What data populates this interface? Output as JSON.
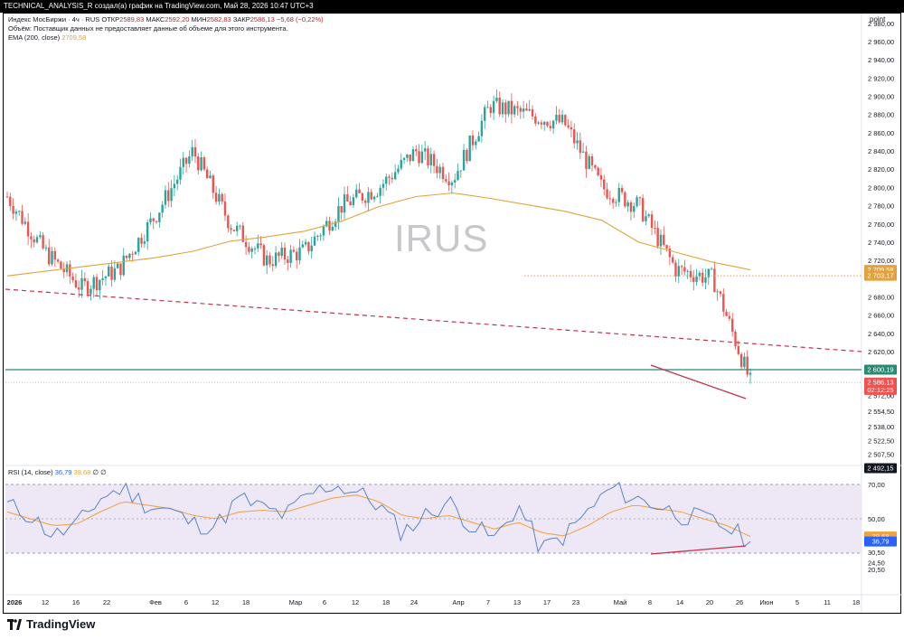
{
  "header": {
    "caption": "TECHNICAL_ANALYSIS_R создал(а) график на TradingView.com, Май 28, 2026 10:47 UTC+3"
  },
  "legend": {
    "symbol": "Индекс МосБиржи · 4ч · RUS",
    "open_label": "ОТКР",
    "open": "2589,83",
    "high_label": "МАКС",
    "high": "2592,20",
    "low_label": "МИН",
    "low": "2582,83",
    "close_label": "ЗАКР",
    "close": "2586,13",
    "change": "−5,68 (−0,22%)",
    "volume_note": "Объём: Поставщик данных не предоставляет данные об объеме для этого инструмента.",
    "ema_label": "EMA (200, close)",
    "ema_value": "2709,58",
    "rsi_label": "RSI (14, close)",
    "rsi_value": "36,79",
    "rsi_ma_value": "39,68",
    "rsi_extra": "∅ ∅"
  },
  "watermark": "IRUS",
  "axis_title": "point",
  "colors": {
    "up": "#26a69a",
    "down": "#ef5350",
    "ema": "#e3a23c",
    "rsi": "#5b84c4",
    "rsi_ma": "#f0a040",
    "trend": "#c2334d",
    "support": "#2b8a73",
    "rsi_band": "#ede7f6"
  },
  "logo": "TradingView",
  "chart_data": [
    {
      "type": "candlestick",
      "title": "Индекс МосБиржи · 4ч · RUS",
      "ylabel": "point",
      "ylim": [
        2492,
        3000
      ],
      "y_ticks": [
        "2 980,00",
        "2 960,00",
        "2 940,00",
        "2 920,00",
        "2 900,00",
        "2 880,00",
        "2 860,00",
        "2 840,00",
        "2 820,00",
        "2 800,00",
        "2 780,00",
        "2 760,00",
        "2 740,00",
        "2 720,00",
        "2 680,00",
        "2 660,00",
        "2 640,00",
        "2 620,00",
        "2 572,00",
        "2 554,50",
        "2 538,00",
        "2 522,50",
        "2 507,50"
      ],
      "x_ticks": [
        "2026",
        "12",
        "16",
        "22",
        "Фев",
        "6",
        "12",
        "18",
        "Мар",
        "6",
        "12",
        "18",
        "24",
        "Апр",
        "7",
        "13",
        "17",
        "23",
        "Май",
        "8",
        "14",
        "20",
        "26",
        "Июн",
        "5",
        "11",
        "18"
      ],
      "price_labels": [
        {
          "text": "2 709,58",
          "value": 2709.58,
          "color": "#e3a23c"
        },
        {
          "text": "2 703,17",
          "value": 2703.17,
          "color": "#e3a23c"
        },
        {
          "text": "2 600,19",
          "value": 2600.19,
          "color": "#2b8a73"
        },
        {
          "text": "2 586,13",
          "value": 2586.13,
          "color": "#ef5350"
        },
        {
          "text": "02:12:25",
          "value": 2578,
          "color": "#ef5350"
        },
        {
          "text": "2 492,15",
          "value": 2492.15,
          "color": "#131722"
        }
      ],
      "series": [
        {
          "name": "EMA (200, close)",
          "x": [
            0,
            0.05,
            0.1,
            0.15,
            0.2,
            0.25,
            0.3,
            0.35,
            0.4,
            0.45,
            0.5,
            0.55,
            0.6,
            0.65,
            0.7,
            0.75,
            0.8,
            0.85,
            0.9,
            0.95,
            1.0
          ],
          "values": [
            2703,
            2708,
            2713,
            2718,
            2723,
            2730,
            2741,
            2746,
            2752,
            2763,
            2779,
            2790,
            2794,
            2788,
            2781,
            2774,
            2764,
            2740,
            2729,
            2718,
            2709.58
          ]
        },
        {
          "name": "Price (approx.)",
          "x": [
            0,
            0.05,
            0.1,
            0.15,
            0.2,
            0.25,
            0.3,
            0.35,
            0.4,
            0.45,
            0.5,
            0.55,
            0.6,
            0.65,
            0.7,
            0.75,
            0.8,
            0.85,
            0.9,
            0.95,
            1.0
          ],
          "values": [
            2790,
            2730,
            2690,
            2710,
            2770,
            2840,
            2760,
            2720,
            2730,
            2780,
            2800,
            2840,
            2810,
            2890,
            2880,
            2870,
            2800,
            2780,
            2710,
            2700,
            2586
          ]
        }
      ],
      "levels": [
        {
          "name": "support",
          "value": 2600.19
        },
        {
          "name": "ema_level",
          "value": 2703.17
        }
      ]
    },
    {
      "type": "line",
      "title": "RSI (14, close)",
      "ylim": [
        20,
        72
      ],
      "y_ticks": [
        "70,00",
        "50,00",
        "39,68",
        "36,79",
        "30,50",
        "24,50",
        "20,50"
      ],
      "bands": [
        30,
        70
      ],
      "series": [
        {
          "name": "RSI",
          "values": [
            58,
            52,
            40,
            46,
            62,
            68,
            58,
            55,
            47,
            46,
            62,
            56,
            52,
            64,
            70,
            66,
            58,
            42,
            52,
            60,
            46,
            38,
            58,
            32,
            40,
            54,
            68,
            62,
            58,
            52,
            50,
            45,
            36.79
          ]
        },
        {
          "name": "RSI MA",
          "values": [
            54,
            50,
            46,
            47,
            54,
            60,
            58,
            56,
            52,
            50,
            54,
            55,
            54,
            58,
            62,
            64,
            60,
            52,
            50,
            52,
            48,
            44,
            48,
            42,
            40,
            46,
            54,
            58,
            56,
            54,
            50,
            46,
            39.68
          ]
        }
      ]
    }
  ]
}
